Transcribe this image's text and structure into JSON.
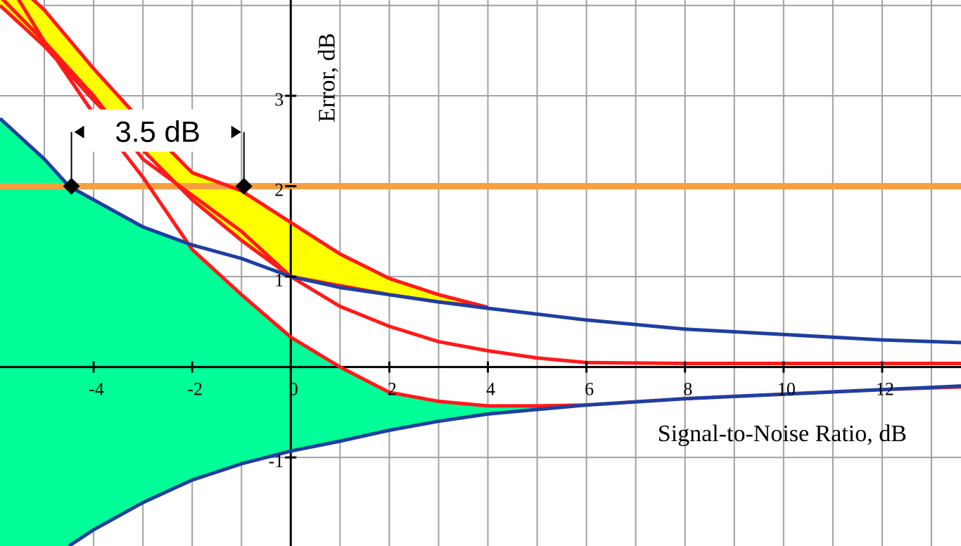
{
  "chart_data": {
    "type": "line",
    "title": "",
    "xlabel": "Signal-to-Noise Ratio, dB",
    "ylabel": "Error, dB",
    "xlim": [
      -5.9,
      13.6
    ],
    "ylim": [
      -1.98,
      4.06
    ],
    "grid": true,
    "x_ticks": [
      {
        "value": -4,
        "label": "-4"
      },
      {
        "value": -2,
        "label": "-2"
      },
      {
        "value": 0,
        "label": "0"
      },
      {
        "value": 2,
        "label": "2"
      },
      {
        "value": 4,
        "label": "4"
      },
      {
        "value": 6,
        "label": "6"
      },
      {
        "value": 8,
        "label": "8"
      },
      {
        "value": 10,
        "label": "10"
      },
      {
        "value": 12,
        "label": "12"
      }
    ],
    "y_ticks": [
      {
        "value": 3,
        "label": "3"
      },
      {
        "value": 2,
        "label": "2"
      },
      {
        "value": 1,
        "label": "1"
      },
      {
        "value": -1,
        "label": "-1"
      }
    ],
    "colors": {
      "blue": "#1f3fa0",
      "red": "#ff1a1a",
      "orange": "#f5a040",
      "green_fill": "#00ff99",
      "yellow_fill": "#ffff00",
      "grid": "#a0a0a0",
      "axis": "#000000"
    },
    "series": [
      {
        "id": "red-band-upper",
        "color": "#ff1a1a",
        "x": [
          -5.9,
          -5,
          -4,
          -3,
          -2,
          -1,
          0,
          1,
          2,
          3,
          4
        ],
        "y": [
          4.4,
          3.95,
          3.3,
          2.7,
          2.15,
          1.95,
          1.6,
          1.25,
          0.98,
          0.8,
          0.66
        ]
      },
      {
        "id": "red-band-lower",
        "color": "#ff1a1a",
        "x": [
          -5.9,
          -5,
          -4,
          -3,
          -2,
          -1,
          0,
          1,
          2,
          3,
          4
        ],
        "y": [
          4.0,
          3.55,
          2.95,
          2.4,
          1.85,
          1.4,
          1.0,
          0.9,
          0.8,
          0.72,
          0.66
        ]
      },
      {
        "id": "red-middle",
        "color": "#ff1a1a",
        "x": [
          -5.9,
          -5,
          -4,
          -3,
          -2,
          -1,
          0,
          1,
          2,
          3,
          4,
          5,
          6,
          8,
          10,
          12,
          13.6
        ],
        "y": [
          4.1,
          3.6,
          3.0,
          2.3,
          1.9,
          1.5,
          1.0,
          0.67,
          0.45,
          0.28,
          0.18,
          0.1,
          0.05,
          0.04,
          0.04,
          0.04,
          0.04
        ]
      },
      {
        "id": "red-lower",
        "color": "#ff1a1a",
        "x": [
          -5.9,
          -5,
          -4,
          -3,
          -2,
          -1,
          0,
          1,
          2,
          3,
          4,
          5,
          6,
          8,
          10,
          12,
          13.6
        ],
        "y": [
          4.4,
          3.6,
          2.8,
          2.1,
          1.3,
          0.8,
          0.33,
          0.0,
          -0.28,
          -0.38,
          -0.43,
          -0.43,
          -0.42,
          -0.35,
          -0.3,
          -0.25,
          -0.22
        ]
      },
      {
        "id": "blue-upper",
        "color": "#1f3fa0",
        "x": [
          -5.9,
          -5,
          -4.5,
          -4,
          -3,
          -2,
          -1,
          0,
          1,
          2,
          3,
          4,
          6,
          8,
          10,
          12,
          13.6
        ],
        "y": [
          2.75,
          2.3,
          2.0,
          1.85,
          1.55,
          1.35,
          1.2,
          1.0,
          0.88,
          0.8,
          0.72,
          0.65,
          0.52,
          0.42,
          0.36,
          0.3,
          0.27
        ]
      },
      {
        "id": "blue-lower",
        "color": "#1f3fa0",
        "x": [
          -4.5,
          -4,
          -3,
          -2,
          -1,
          0,
          1,
          2,
          3,
          4,
          6,
          8,
          10,
          12,
          13.6
        ],
        "y": [
          -1.98,
          -1.8,
          -1.5,
          -1.25,
          -1.07,
          -0.93,
          -0.82,
          -0.7,
          -0.6,
          -0.52,
          -0.42,
          -0.35,
          -0.3,
          -0.25,
          -0.21
        ]
      }
    ],
    "threshold_line": {
      "y": 2,
      "color": "#f5a040"
    },
    "markers": [
      {
        "x": -4.45,
        "y": 2
      },
      {
        "x": -0.95,
        "y": 2
      }
    ],
    "annotation": {
      "text": "3.5 dB",
      "x_from": -4.45,
      "x_to": -0.95,
      "y": 2.6
    }
  }
}
